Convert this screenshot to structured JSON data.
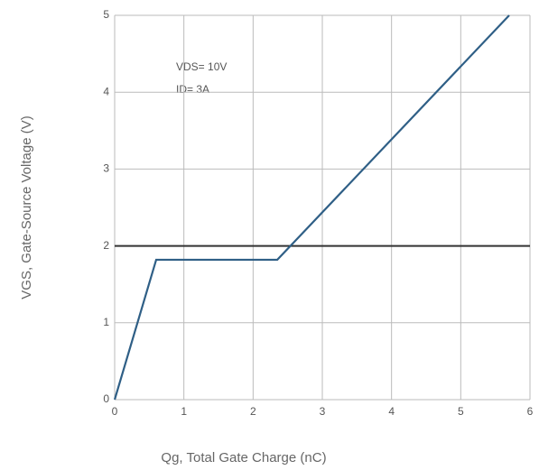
{
  "chart_data": {
    "type": "line",
    "xlabel": "Qg, Total Gate Charge (nC)",
    "ylabel": "VGS, Gate-Source Voltage (V)",
    "annotations": [
      "VDS= 10V",
      "ID= 3A"
    ],
    "x": [
      0,
      0.6,
      2.35,
      5.7
    ],
    "values": [
      0,
      1.82,
      1.82,
      5
    ],
    "color": "#2f5f86",
    "reference_line": 2,
    "xlim": [
      0,
      6
    ],
    "xticks": [
      0,
      1,
      2,
      3,
      4,
      5,
      6
    ],
    "ylim": [
      0,
      5
    ],
    "yticks": [
      0,
      1,
      2,
      3,
      4,
      5
    ],
    "grid": true
  }
}
